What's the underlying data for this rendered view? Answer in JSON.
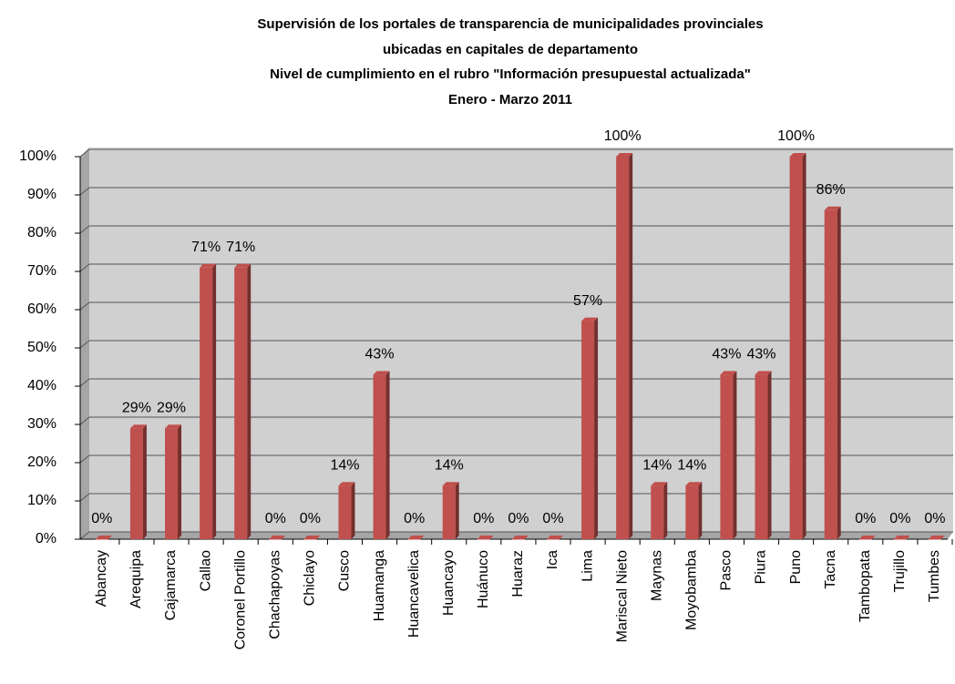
{
  "chart_data": {
    "type": "bar3d",
    "title": [
      "Supervisión de los portales de transparencia de municipalidades provinciales",
      "ubicadas en capitales de departamento",
      "Nivel de cumplimiento en el rubro \"Información presupuestal actualizada\"",
      "Enero - Marzo 2011"
    ],
    "categories": [
      "Abancay",
      "Arequipa",
      "Cajamarca",
      "Callao",
      "Coronel Portillo",
      "Chachapoyas",
      "Chiclayo",
      "Cusco",
      "Huamanga",
      "Huancavelica",
      "Huancayo",
      "Huánuco",
      "Huaraz",
      "Ica",
      "Lima",
      "Mariscal Nieto",
      "Maynas",
      "Moyobamba",
      "Pasco",
      "Piura",
      "Puno",
      "Tacna",
      "Tambopata",
      "Trujillo",
      "Tumbes"
    ],
    "values": [
      0,
      29,
      29,
      71,
      71,
      0,
      0,
      14,
      43,
      0,
      14,
      0,
      0,
      0,
      57,
      100,
      14,
      14,
      43,
      43,
      100,
      86,
      0,
      0,
      0
    ],
    "value_labels": [
      "0%",
      "29%",
      "29%",
      "71%",
      "71%",
      "0%",
      "0%",
      "14%",
      "43%",
      "0%",
      "14%",
      "0%",
      "0%",
      "0%",
      "57%",
      "100%",
      "14%",
      "14%",
      "43%",
      "43%",
      "100%",
      "86%",
      "0%",
      "0%",
      "0%"
    ],
    "color": "#c0504d",
    "ylim": [
      0,
      100
    ],
    "yticks": [
      {
        "value": 0,
        "label": "0%"
      },
      {
        "value": 10,
        "label": "10%"
      },
      {
        "value": 20,
        "label": "20%"
      },
      {
        "value": 30,
        "label": "30%"
      },
      {
        "value": 40,
        "label": "40%"
      },
      {
        "value": 50,
        "label": "50%"
      },
      {
        "value": 60,
        "label": "60%"
      },
      {
        "value": 70,
        "label": "70%"
      },
      {
        "value": 80,
        "label": "80%"
      },
      {
        "value": 90,
        "label": "90%"
      },
      {
        "value": 100,
        "label": "100%"
      }
    ],
    "grid": true
  }
}
